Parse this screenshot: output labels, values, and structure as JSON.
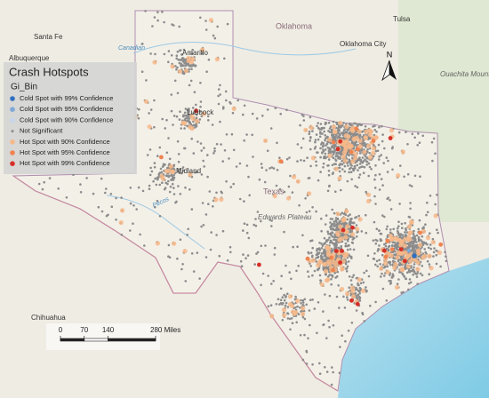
{
  "legend": {
    "title": "Crash Hotspots",
    "field": "Gi_Bin",
    "items": [
      {
        "label": "Cold Spot with 99% Confidence",
        "color": "#2f6fc0"
      },
      {
        "label": "Cold Spot with 95% Confidence",
        "color": "#7fa8d8"
      },
      {
        "label": "Cold Spot with 90% Confidence",
        "color": "#c6d6ea"
      },
      {
        "label": "Not Significant",
        "color": "#8c8c8c"
      },
      {
        "label": "Hot Spot with 90% Confidence",
        "color": "#f6b98a"
      },
      {
        "label": "Hot Spot with 95% Confidence",
        "color": "#ef8350"
      },
      {
        "label": "Hot Spot with 99% Confidence",
        "color": "#d62f27"
      }
    ]
  },
  "places": {
    "santa_fe": "Santa Fe",
    "albuquerque": "Albuquerque",
    "amarillo": "Amarillo",
    "oklahoma": "Oklahoma",
    "tulsa": "Tulsa",
    "oklahoma_city": "Oklahoma City",
    "ouachita": "Ouachita Mountains",
    "lubbock": "Lubbock",
    "midland": "Midland",
    "texas": "Texas",
    "edwards": "Edwards Plateau",
    "chihuahua": "Chihuahua",
    "canadian": "Canadian",
    "pecos": "Pecos"
  },
  "north": "N",
  "scale": {
    "ticks": [
      0,
      70,
      140,
      {
        "value": 280,
        "label": "280 Miles"
      }
    ]
  }
}
